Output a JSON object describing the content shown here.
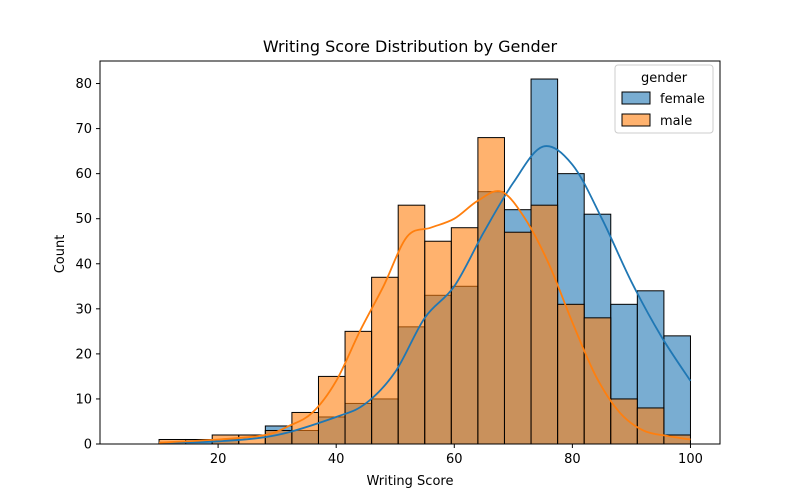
{
  "chart_data": {
    "type": "histogram",
    "title": "Writing Score Distribution by Gender",
    "xlabel": "Writing Score",
    "ylabel": "Count",
    "xlim": [
      0,
      105
    ],
    "ylim": [
      0,
      85
    ],
    "x_ticks": [
      20,
      40,
      60,
      80,
      100
    ],
    "y_ticks": [
      0,
      10,
      20,
      30,
      40,
      50,
      60,
      70,
      80
    ],
    "bin_edges": [
      10,
      14.5,
      19,
      23.5,
      28,
      32.5,
      37,
      41.5,
      46,
      50.5,
      55,
      59.5,
      64,
      68.5,
      73,
      77.5,
      82,
      86.5,
      91,
      95.5,
      100
    ],
    "grid": false,
    "legend": {
      "title": "gender",
      "placement": "top-right"
    },
    "series": [
      {
        "name": "female",
        "color": "#1f77b4",
        "counts": [
          0,
          1,
          1,
          0,
          4,
          3,
          6,
          9,
          10,
          26,
          33,
          35,
          56,
          52,
          81,
          60,
          51,
          31,
          34,
          24
        ],
        "kde": [
          [
            10,
            0.3
          ],
          [
            20,
            0.6
          ],
          [
            30,
            2
          ],
          [
            40,
            6
          ],
          [
            45,
            9
          ],
          [
            50,
            16
          ],
          [
            55,
            28
          ],
          [
            60,
            35
          ],
          [
            65,
            47
          ],
          [
            70,
            58
          ],
          [
            75,
            66
          ],
          [
            80,
            62
          ],
          [
            85,
            50
          ],
          [
            90,
            36
          ],
          [
            95,
            24
          ],
          [
            100,
            14
          ]
        ]
      },
      {
        "name": "male",
        "color": "#ff7f0e",
        "counts": [
          1,
          0,
          2,
          2,
          3,
          7,
          15,
          25,
          37,
          53,
          45,
          48,
          68,
          47,
          53,
          31,
          28,
          10,
          8,
          2
        ],
        "kde": [
          [
            10,
            0.3
          ],
          [
            20,
            1
          ],
          [
            28,
            2
          ],
          [
            32,
            4
          ],
          [
            36,
            7
          ],
          [
            40,
            14
          ],
          [
            44,
            25
          ],
          [
            48,
            35
          ],
          [
            52,
            46
          ],
          [
            56,
            48
          ],
          [
            60,
            50
          ],
          [
            64,
            54
          ],
          [
            68,
            56
          ],
          [
            72,
            50
          ],
          [
            76,
            40
          ],
          [
            80,
            27
          ],
          [
            84,
            15
          ],
          [
            88,
            7
          ],
          [
            92,
            3
          ],
          [
            96,
            1.8
          ],
          [
            100,
            1
          ]
        ]
      }
    ]
  }
}
